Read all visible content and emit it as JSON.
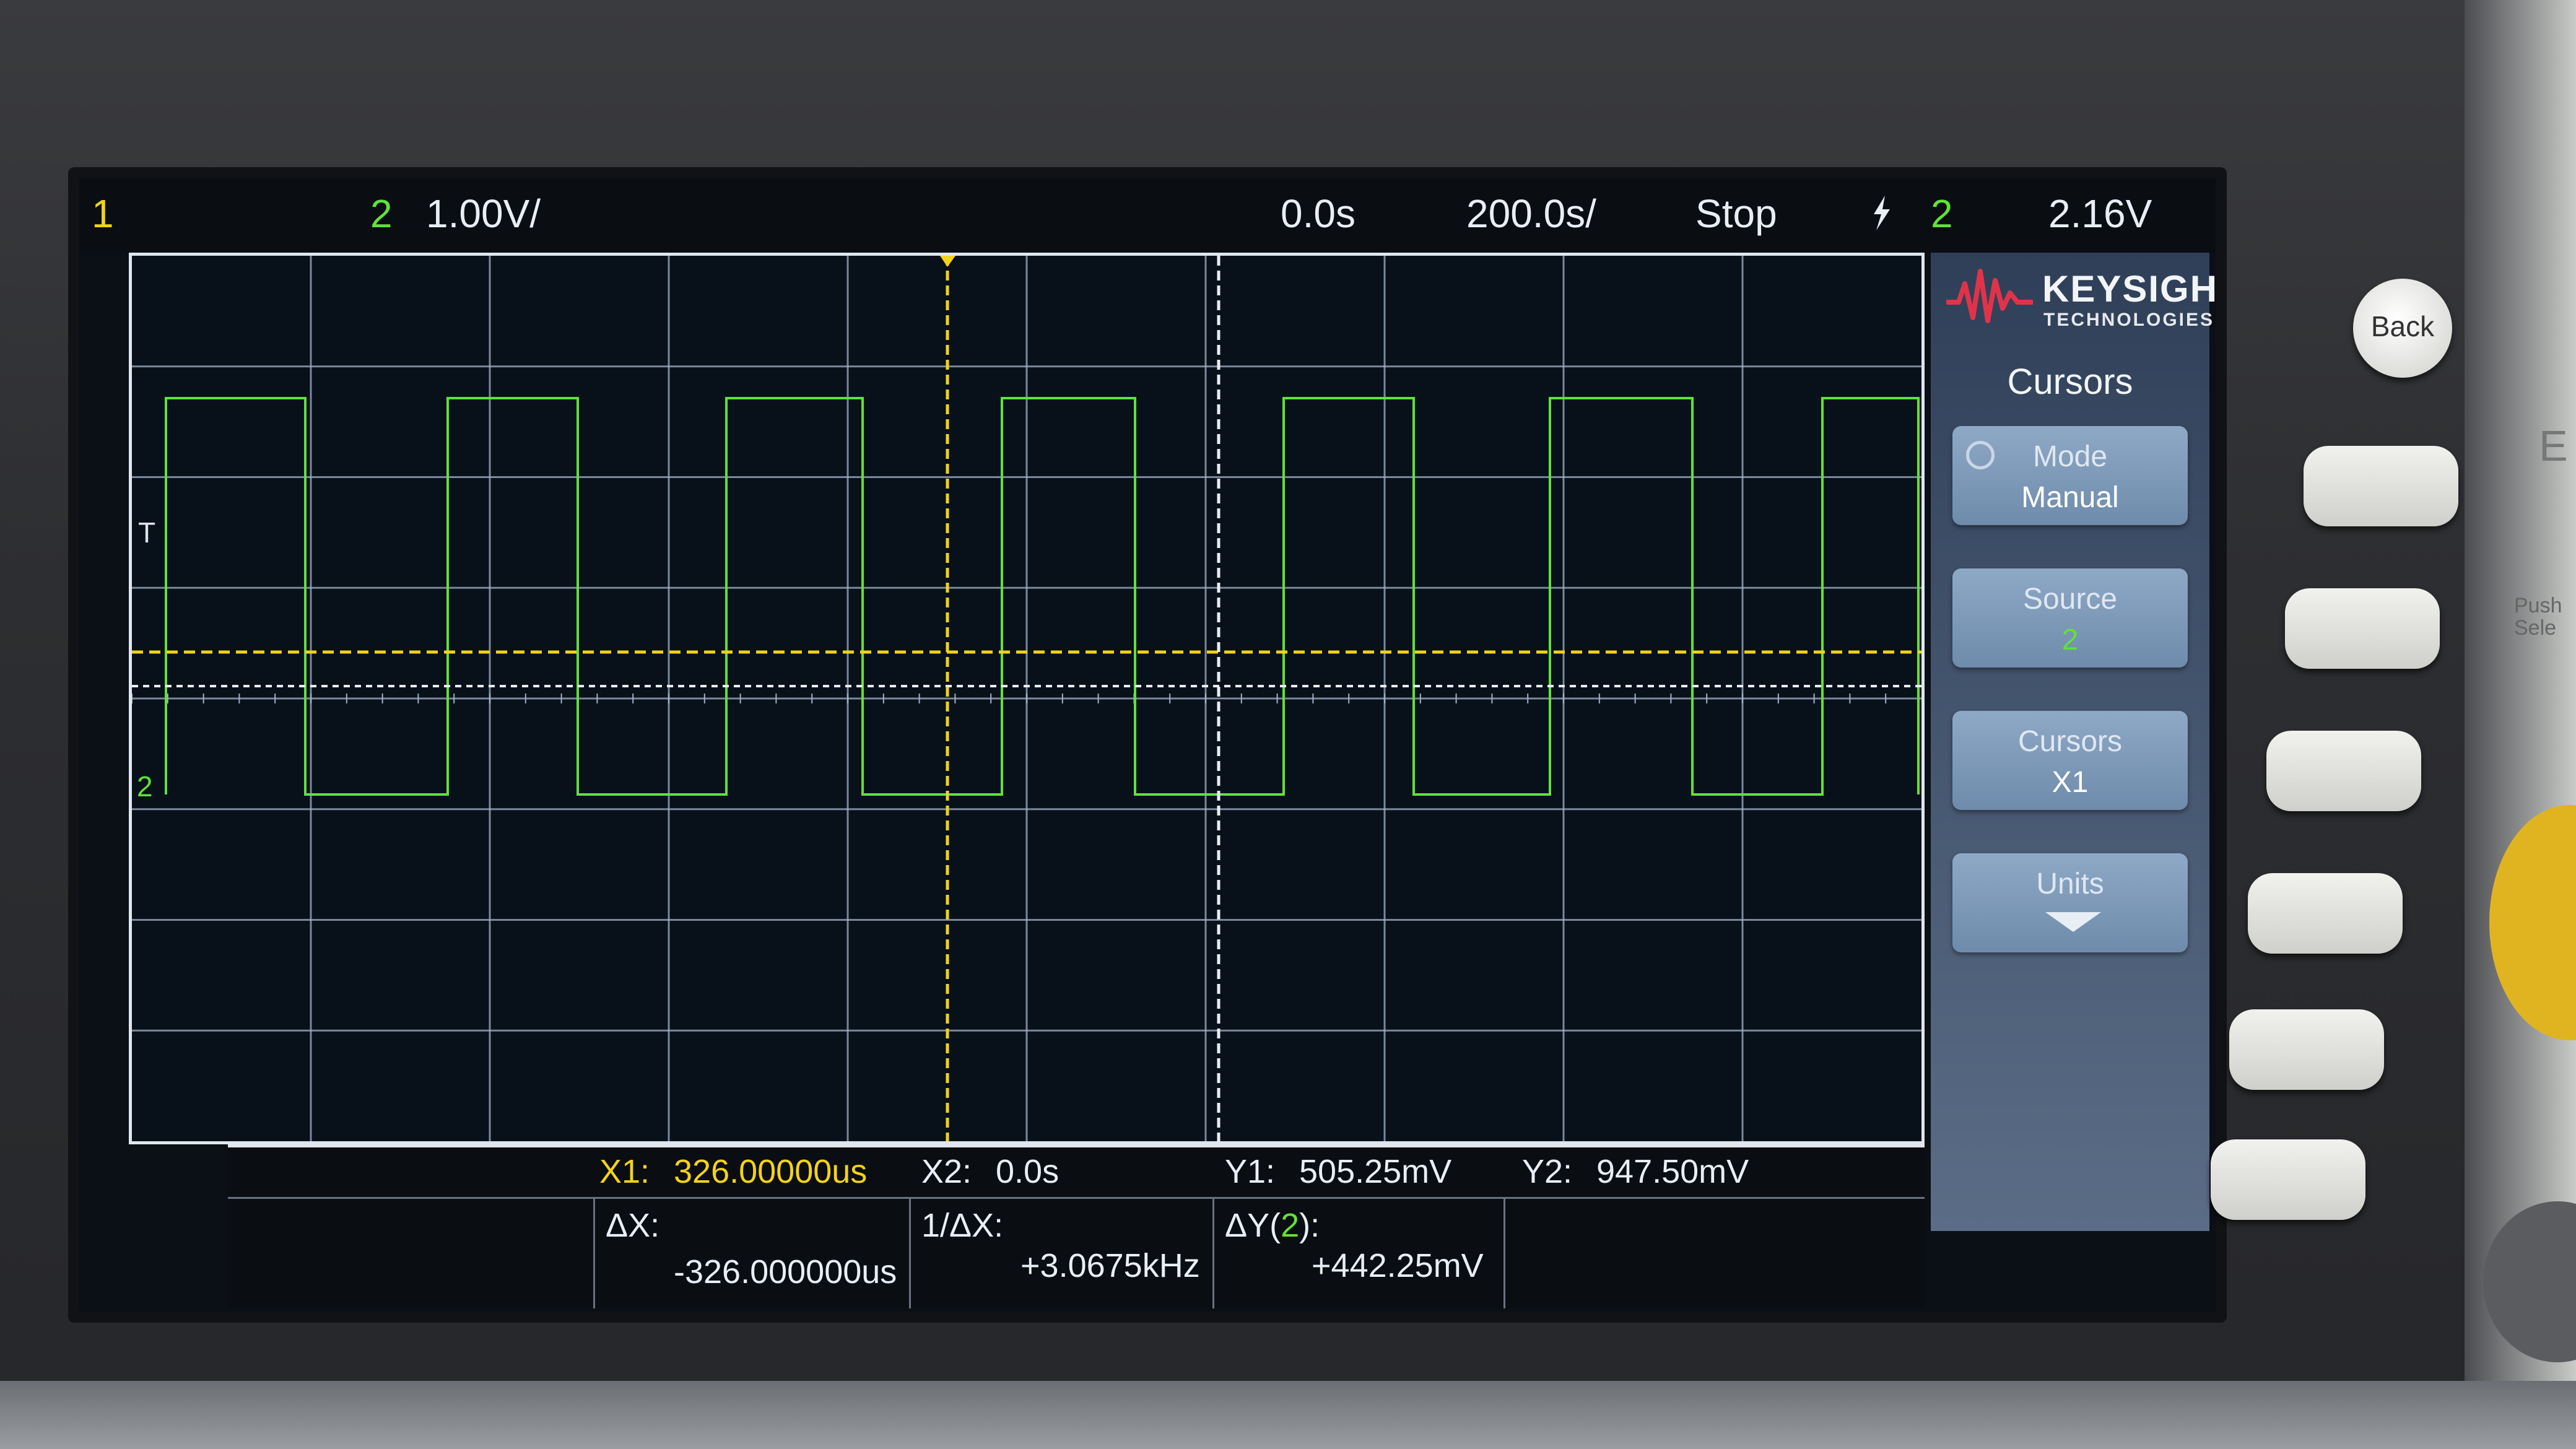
{
  "header": {
    "channel1": "1",
    "channel2": "2",
    "vertical_scale": "1.00V/",
    "time_delay": "0.0s",
    "time_scale": "200.0s/",
    "run_state": "Stop",
    "trigger_icon": "trigger-edge-icon",
    "trigger_source": "2",
    "trigger_level": "2.16V"
  },
  "markers": {
    "trigger_level": "T",
    "channel2_ground": "2"
  },
  "cursors": {
    "x1_label": "X1:",
    "x1_value": "326.00000us",
    "x2_label": "X2:",
    "x2_value": "0.0s",
    "y1_label": "Y1:",
    "y1_value": "505.25mV",
    "y2_label": "Y2:",
    "y2_value": "947.50mV",
    "dx_label": "ΔX:",
    "dx_value": "-326.000000us",
    "inv_dx_label": "1/ΔX:",
    "inv_dx_value": "+3.0675kHz",
    "dy_label_prefix": "ΔY(",
    "dy_label_channel": "2",
    "dy_label_suffix": "):",
    "dy_value": "+442.25mV"
  },
  "menu": {
    "brand": "KEYSIGHT",
    "brand_sub": "TECHNOLOGIES",
    "title": "Cursors",
    "softkeys": [
      {
        "line1": "Mode",
        "line2": "Manual"
      },
      {
        "line1": "Source",
        "line2": "2"
      },
      {
        "line1": "Cursors",
        "line2": "X1"
      },
      {
        "line1": "Units",
        "line2": ""
      }
    ]
  },
  "buttons": {
    "back": "Back"
  },
  "bezel": {
    "partial_text": "E",
    "push_select": "Push\nSele"
  },
  "colors": {
    "channel1": "#f2d21b",
    "channel2": "#5fe23a",
    "grid": "#9fb0c8",
    "background": "#081019"
  }
}
